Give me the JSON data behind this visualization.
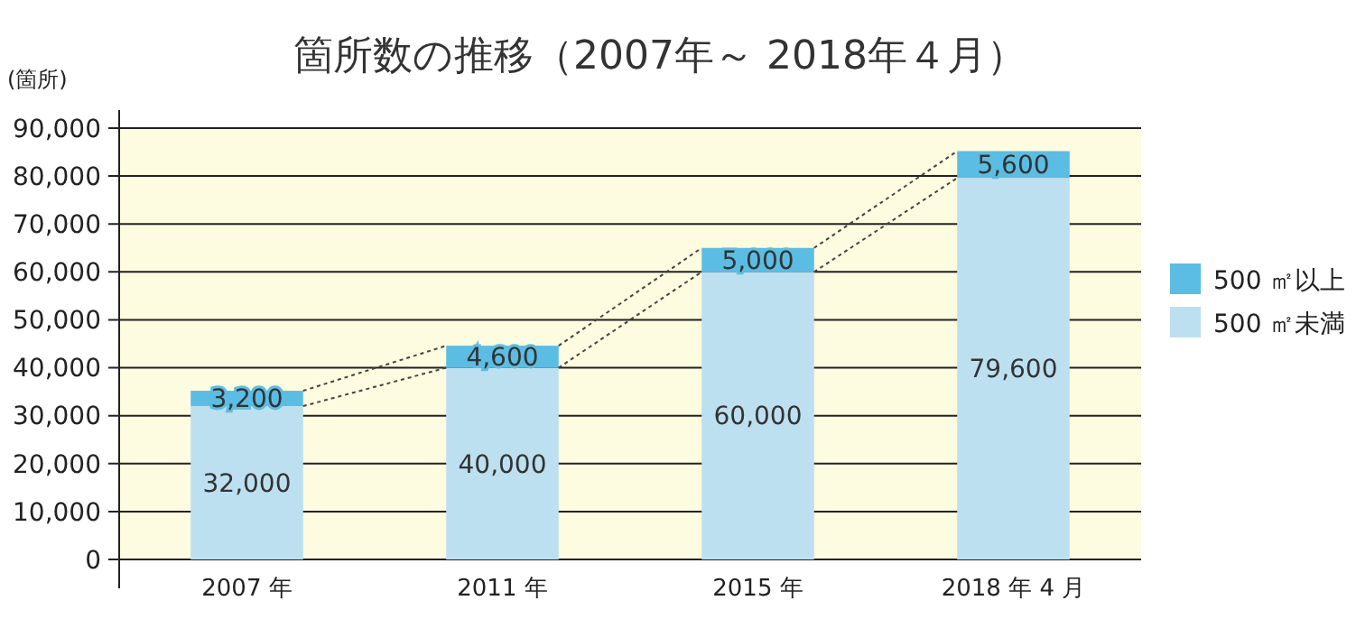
{
  "chart_data": {
    "type": "bar",
    "title": "箇所数の推移（2007年～ 2018年４月）",
    "ylabel": "(箇所)",
    "categories": [
      "2007 年",
      "2011 年",
      "2015 年",
      "2018 年 4 月"
    ],
    "stacked": true,
    "series": [
      {
        "name": "500 ㎡未満",
        "color": "#bde0f0",
        "values": [
          32000,
          40000,
          60000,
          79600
        ],
        "value_labels": [
          "32,000",
          "40,000",
          "60,000",
          "79,600"
        ]
      },
      {
        "name": "500 ㎡以上",
        "color": "#5bbde3",
        "values": [
          3200,
          4600,
          5000,
          5600
        ],
        "value_labels": [
          "3,200",
          "4,600",
          "5,000",
          "5,600"
        ]
      }
    ],
    "ylim": [
      0,
      90000
    ],
    "yticks": [
      {
        "value": 0,
        "label": "0"
      },
      {
        "value": 10000,
        "label": "10,000"
      },
      {
        "value": 20000,
        "label": "20,000"
      },
      {
        "value": 30000,
        "label": "30,000"
      },
      {
        "value": 40000,
        "label": "40,000"
      },
      {
        "value": 50000,
        "label": "50,000"
      },
      {
        "value": 60000,
        "label": "60,000"
      },
      {
        "value": 70000,
        "label": "70,000"
      },
      {
        "value": 80000,
        "label": "80,000"
      },
      {
        "value": 90000,
        "label": "90,000"
      }
    ],
    "grid": "y",
    "legend": "right"
  }
}
